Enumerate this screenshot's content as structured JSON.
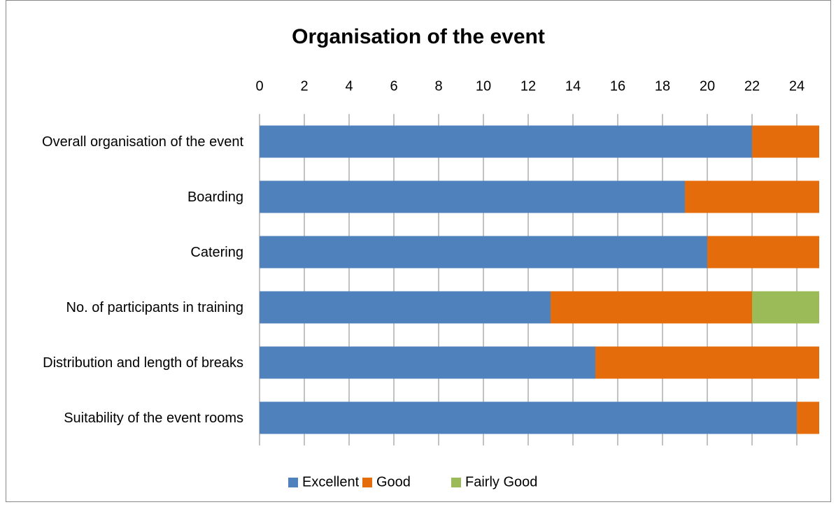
{
  "chart_data": {
    "type": "stacked-barh",
    "title": "Organisation of the event",
    "categories": [
      "Overall organisation of the event",
      "Boarding",
      "Catering",
      "No. of participants in training",
      "Distribution and length of breaks",
      "Suitability of the event rooms"
    ],
    "series": [
      {
        "name": "Excellent",
        "color": "#4f81bd",
        "values": [
          22,
          19,
          20,
          13,
          15,
          24
        ]
      },
      {
        "name": "Good",
        "color": "#e46c0a",
        "values": [
          3,
          6,
          5,
          9,
          10,
          1
        ]
      },
      {
        "name": "Fairly Good",
        "color": "#9bbb59",
        "values": [
          0,
          0,
          0,
          3,
          0,
          0
        ]
      }
    ],
    "xlim": [
      0,
      25
    ],
    "xticks": [
      0,
      2,
      4,
      6,
      8,
      10,
      12,
      14,
      16,
      18,
      20,
      22,
      24
    ],
    "grid": true,
    "legend": "bottom"
  }
}
